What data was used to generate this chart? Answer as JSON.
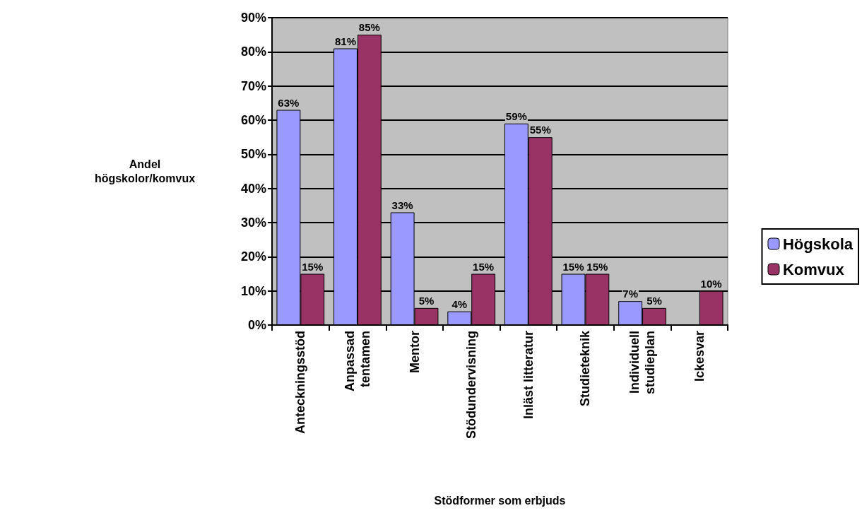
{
  "chart_data": {
    "type": "bar",
    "xlabel": "Stödformer som erbjuds",
    "ylabel": "Andel\nhögskolor/komvux",
    "categories": [
      "Anteckningsstöd",
      "Anpassad\ntentamen",
      "Mentor",
      "Stödundervisning",
      "Inläst litteratur",
      "Studieteknik",
      "Individuell\nstudieplan",
      "Ickesvar"
    ],
    "series": [
      {
        "name": "Högskola",
        "color": "#9999ff",
        "values": [
          63,
          81,
          33,
          4,
          59,
          15,
          7,
          null
        ],
        "value_labels": [
          "63%",
          "81%",
          "33%",
          "4%",
          "59%",
          "15%",
          "7%",
          null
        ]
      },
      {
        "name": "Komvux",
        "color": "#993366",
        "values": [
          15,
          85,
          5,
          15,
          55,
          15,
          5,
          10
        ],
        "value_labels": [
          "15%",
          "85%",
          "5%",
          "15%",
          "55%",
          "15%",
          "5%",
          "10%"
        ]
      }
    ],
    "ylim": [
      0,
      90
    ],
    "yticks": [
      {
        "value": 0,
        "label": "0%"
      },
      {
        "value": 10,
        "label": "10%"
      },
      {
        "value": 20,
        "label": "20%"
      },
      {
        "value": 30,
        "label": "30%"
      },
      {
        "value": 40,
        "label": "40%"
      },
      {
        "value": 50,
        "label": "50%"
      },
      {
        "value": 60,
        "label": "60%"
      },
      {
        "value": 70,
        "label": "70%"
      },
      {
        "value": 80,
        "label": "80%"
      },
      {
        "value": 90,
        "label": "90%"
      }
    ],
    "grid": "y",
    "legend": "right"
  }
}
